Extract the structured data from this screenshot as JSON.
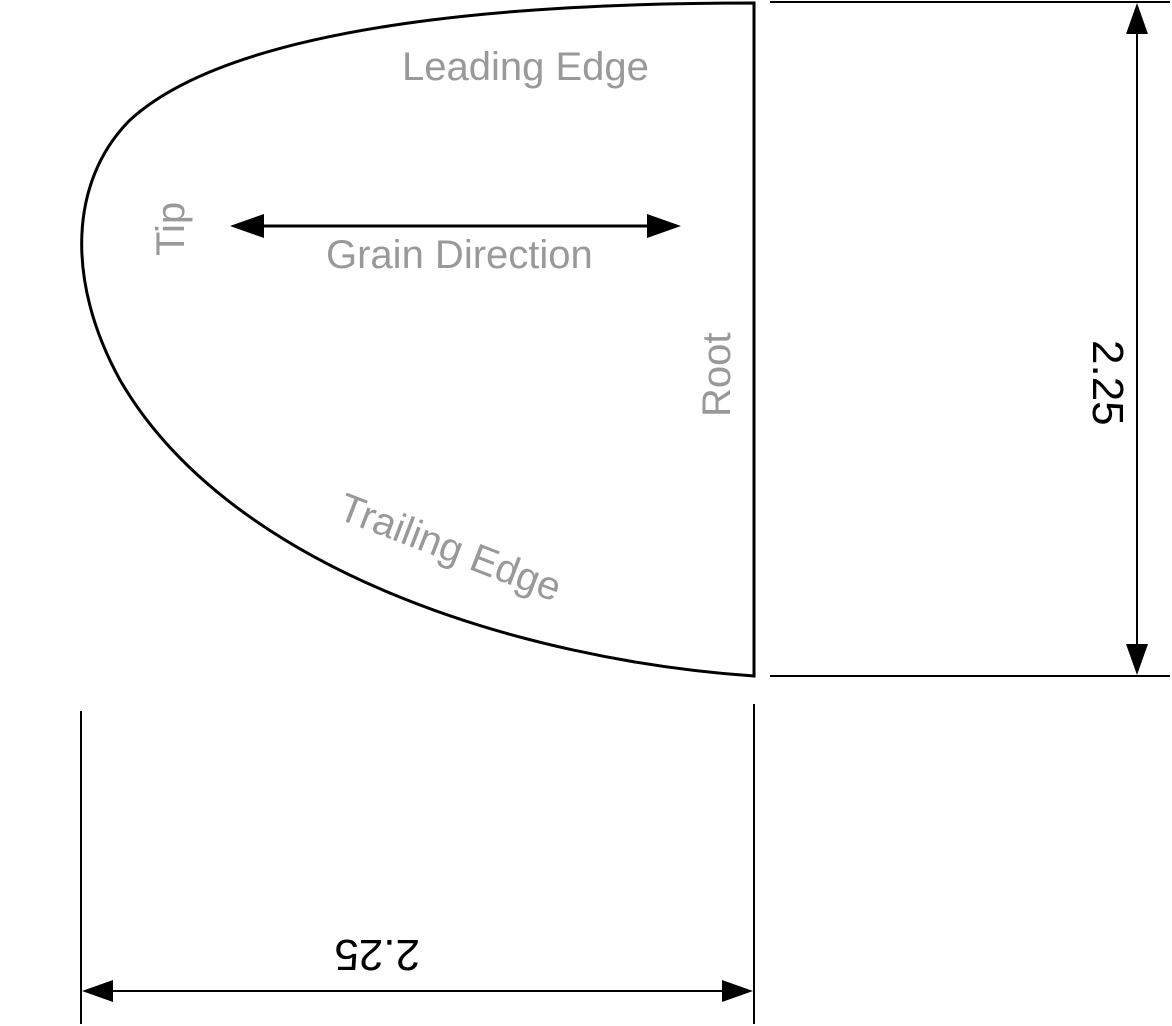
{
  "labels": {
    "leading_edge": "Leading Edge",
    "tip": "Tip",
    "grain_direction": "Grain Direction",
    "root": "Root",
    "trailing_edge": "Trailing Edge"
  },
  "dimensions": {
    "height": "2.25",
    "width": "2.25"
  }
}
